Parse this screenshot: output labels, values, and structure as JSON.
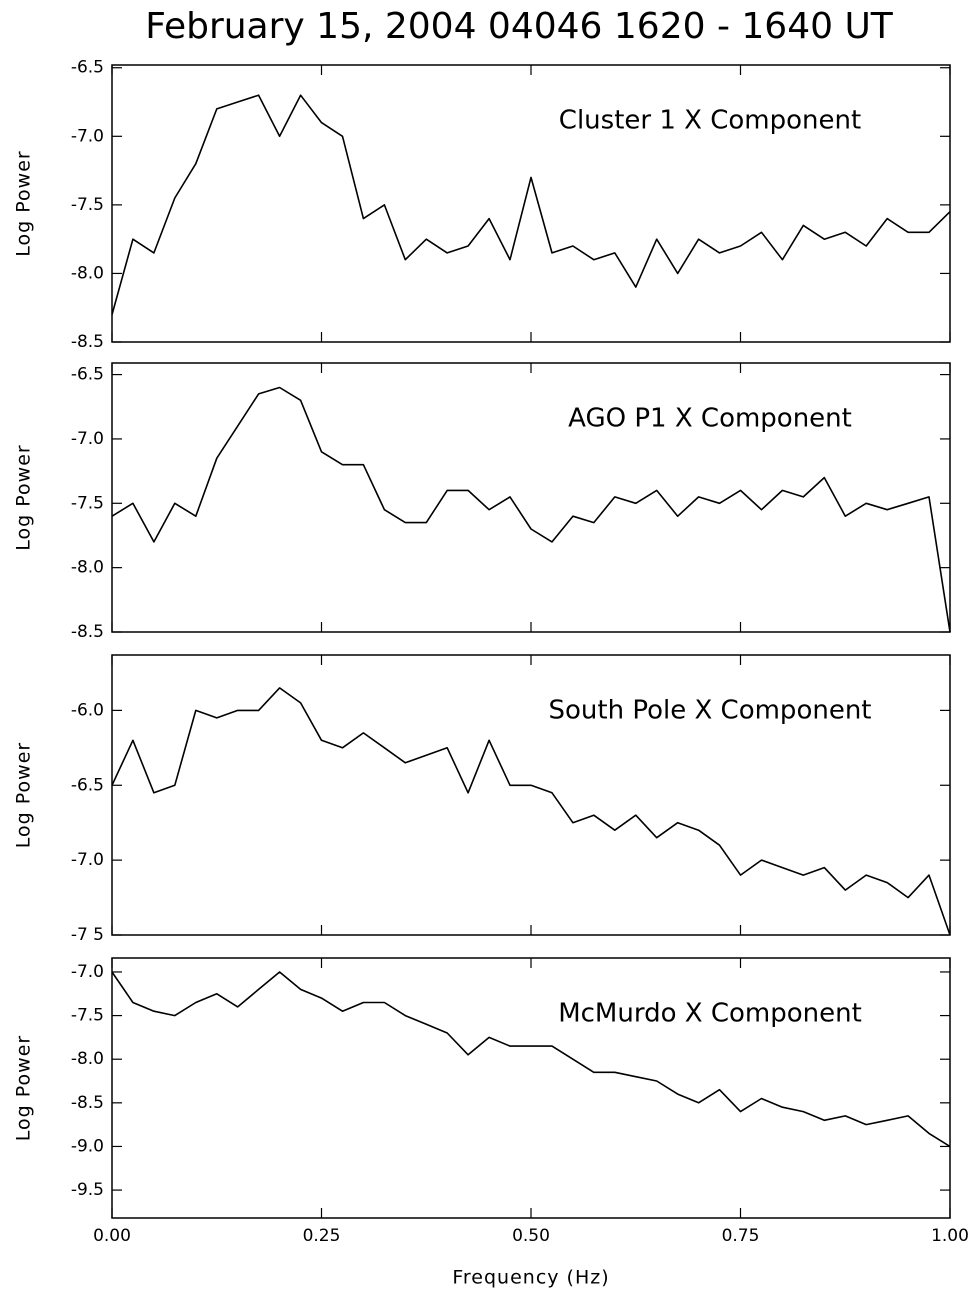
{
  "title": "February 15, 2004    04046      1620 - 1640 UT",
  "chart_data": [
    {
      "type": "line",
      "annotation": "Cluster 1  X Component",
      "y_label": "Log Power",
      "xlim": [
        0,
        1
      ],
      "ylim": [
        -8.5,
        -6.48
      ],
      "yticks": [
        -8.5,
        {
          "value": -8,
          "label": "-8.0"
        },
        -7.5,
        {
          "value": -7,
          "label": "-7.0"
        },
        -6.5
      ],
      "series": [
        {
          "color": "#000000",
          "x": [
            0,
            0.025,
            0.05,
            0.075,
            0.1,
            0.125,
            0.15,
            0.175,
            0.2,
            0.225,
            0.25,
            0.275,
            0.3,
            0.325,
            0.35,
            0.375,
            0.4,
            0.425,
            0.45,
            0.475,
            0.5,
            0.525,
            0.55,
            0.575,
            0.6,
            0.625,
            0.65,
            0.675,
            0.7,
            0.725,
            0.75,
            0.775,
            0.8,
            0.825,
            0.85,
            0.875,
            0.9,
            0.925,
            0.95,
            0.975,
            1
          ],
          "values": [
            -8.3,
            -7.75,
            -7.85,
            -7.45,
            -7.2,
            -6.8,
            -6.75,
            -6.7,
            -7.0,
            -6.7,
            -6.9,
            -7.0,
            -7.6,
            -7.5,
            -7.9,
            -7.75,
            -7.85,
            -7.8,
            -7.6,
            -7.9,
            -7.3,
            -7.85,
            -7.8,
            -7.9,
            -7.85,
            -8.1,
            -7.75,
            -8.0,
            -7.75,
            -7.85,
            -7.8,
            -7.7,
            -7.9,
            -7.65,
            -7.75,
            -7.7,
            -7.8,
            -7.6,
            -7.7,
            -7.7,
            -7.55
          ]
        }
      ]
    },
    {
      "type": "line",
      "annotation": "AGO P1  X Component",
      "y_label": "Log Power",
      "xlim": [
        0,
        1
      ],
      "ylim": [
        -8.5,
        -6.41
      ],
      "yticks": [
        -8.5,
        {
          "value": -8,
          "label": "-8.0"
        },
        -7.5,
        {
          "value": -7,
          "label": "-7.0"
        },
        -6.5
      ],
      "series": [
        {
          "color": "#000000",
          "x": [
            0,
            0.025,
            0.05,
            0.075,
            0.1,
            0.125,
            0.15,
            0.175,
            0.2,
            0.225,
            0.25,
            0.275,
            0.3,
            0.325,
            0.35,
            0.375,
            0.4,
            0.425,
            0.45,
            0.475,
            0.5,
            0.525,
            0.55,
            0.575,
            0.6,
            0.625,
            0.65,
            0.675,
            0.7,
            0.725,
            0.75,
            0.775,
            0.8,
            0.825,
            0.85,
            0.875,
            0.9,
            0.925,
            0.95,
            0.975,
            1
          ],
          "values": [
            -7.6,
            -7.5,
            -7.8,
            -7.5,
            -7.6,
            -7.15,
            -6.9,
            -6.65,
            -6.6,
            -6.7,
            -7.1,
            -7.2,
            -7.2,
            -7.55,
            -7.65,
            -7.65,
            -7.4,
            -7.4,
            -7.55,
            -7.45,
            -7.7,
            -7.8,
            -7.6,
            -7.65,
            -7.45,
            -7.5,
            -7.4,
            -7.6,
            -7.45,
            -7.5,
            -7.4,
            -7.55,
            -7.4,
            -7.45,
            -7.3,
            -7.6,
            -7.5,
            -7.55,
            -7.5,
            -7.45,
            -8.5
          ]
        }
      ]
    },
    {
      "type": "line",
      "annotation": "South Pole  X Component",
      "y_label": "Log Power",
      "xlim": [
        0,
        1
      ],
      "ylim": [
        -7.5,
        -5.63
      ],
      "yticks": [
        {
          "value": -7.5,
          "label": "-7 5"
        },
        {
          "value": -7,
          "label": "-7.0"
        },
        -6.5,
        {
          "value": -6,
          "label": "-6.0"
        }
      ],
      "series": [
        {
          "color": "#000000",
          "x": [
            0,
            0.025,
            0.05,
            0.075,
            0.1,
            0.125,
            0.15,
            0.175,
            0.2,
            0.225,
            0.25,
            0.275,
            0.3,
            0.325,
            0.35,
            0.375,
            0.4,
            0.425,
            0.45,
            0.475,
            0.5,
            0.525,
            0.55,
            0.575,
            0.6,
            0.625,
            0.65,
            0.675,
            0.7,
            0.725,
            0.75,
            0.775,
            0.8,
            0.825,
            0.85,
            0.875,
            0.9,
            0.925,
            0.95,
            0.975,
            1
          ],
          "values": [
            -6.5,
            -6.2,
            -6.55,
            -6.5,
            -6.0,
            -6.05,
            -6.0,
            -6.0,
            -5.85,
            -5.95,
            -6.2,
            -6.25,
            -6.15,
            -6.25,
            -6.35,
            -6.3,
            -6.25,
            -6.55,
            -6.2,
            -6.5,
            -6.5,
            -6.55,
            -6.75,
            -6.7,
            -6.8,
            -6.7,
            -6.85,
            -6.75,
            -6.8,
            -6.9,
            -7.1,
            -7.0,
            -7.05,
            -7.1,
            -7.05,
            -7.2,
            -7.1,
            -7.15,
            -7.25,
            -7.1,
            -7.5
          ]
        }
      ]
    },
    {
      "type": "line",
      "annotation": "McMurdo  X Component",
      "y_label": "Log Power",
      "x_label": "Frequency (Hz)",
      "xlim": [
        0,
        1
      ],
      "ylim": [
        -9.82,
        -6.84
      ],
      "xticks": [
        {
          "value": 0,
          "label": "0.00"
        },
        {
          "value": 0.25,
          "label": "0.25"
        },
        {
          "value": 0.5,
          "label": "0.50"
        },
        {
          "value": 0.75,
          "label": "0.75"
        },
        {
          "value": 1,
          "label": "1.00"
        }
      ],
      "yticks": [
        -9.5,
        {
          "value": -9,
          "label": "-9.0"
        },
        -8.5,
        {
          "value": -8,
          "label": "-8.0"
        },
        -7.5,
        {
          "value": -7,
          "label": "-7.0"
        }
      ],
      "series": [
        {
          "color": "#000000",
          "x": [
            0,
            0.025,
            0.05,
            0.075,
            0.1,
            0.125,
            0.15,
            0.175,
            0.2,
            0.225,
            0.25,
            0.275,
            0.3,
            0.325,
            0.35,
            0.375,
            0.4,
            0.425,
            0.45,
            0.475,
            0.5,
            0.525,
            0.55,
            0.575,
            0.6,
            0.625,
            0.65,
            0.675,
            0.7,
            0.725,
            0.75,
            0.775,
            0.8,
            0.825,
            0.85,
            0.875,
            0.9,
            0.925,
            0.95,
            0.975,
            1
          ],
          "values": [
            -7.0,
            -7.35,
            -7.45,
            -7.5,
            -7.35,
            -7.25,
            -7.4,
            -7.2,
            -7.0,
            -7.2,
            -7.3,
            -7.45,
            -7.35,
            -7.35,
            -7.5,
            -7.6,
            -7.7,
            -7.95,
            -7.75,
            -7.85,
            -7.85,
            -7.85,
            -8.0,
            -8.15,
            -8.15,
            -8.2,
            -8.25,
            -8.4,
            -8.5,
            -8.35,
            -8.6,
            -8.45,
            -8.55,
            -8.6,
            -8.7,
            -8.65,
            -8.75,
            -8.7,
            -8.65,
            -8.85,
            -9.0
          ]
        }
      ]
    }
  ]
}
